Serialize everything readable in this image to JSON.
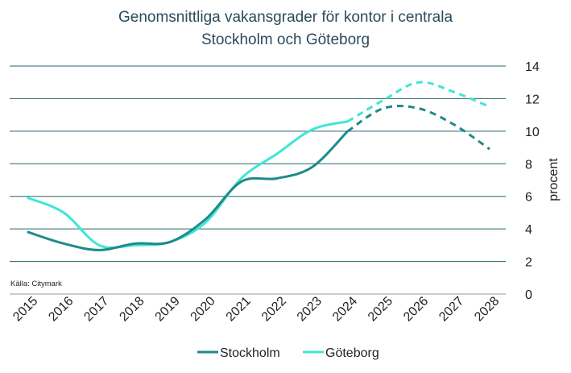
{
  "chart_data": {
    "type": "line",
    "title_lines": [
      "Genomsnittliga vakansgrader för kontor i centrala",
      "Stockholm och Göteborg"
    ],
    "x": [
      "2015",
      "2016",
      "2017",
      "2018",
      "2019",
      "2020",
      "2021",
      "2022",
      "2023",
      "2024",
      "2025",
      "2026",
      "2027",
      "2028"
    ],
    "ylabel": "procent",
    "y_ticks": [
      "0",
      "2",
      "4",
      "6",
      "8",
      "10",
      "12",
      "14"
    ],
    "ylim": [
      0,
      14
    ],
    "source": "Källa: Citymark",
    "grid": "horizontal",
    "y_axis_side": "right",
    "legend_position": "bottom",
    "forecast_from": "2024",
    "forecast_style": "dashed",
    "series": [
      {
        "name": "Stockholm",
        "color": "#1f8a8a",
        "values": [
          3.8,
          3.1,
          2.7,
          3.1,
          3.2,
          4.6,
          6.9,
          7.1,
          7.8,
          10.0,
          11.4,
          11.4,
          10.4,
          8.9
        ]
      },
      {
        "name": "Göteborg",
        "color": "#3ee6d6",
        "values": [
          5.9,
          5.0,
          3.0,
          3.0,
          3.2,
          4.4,
          7.1,
          8.6,
          10.1,
          10.6,
          11.9,
          13.0,
          12.4,
          11.5
        ]
      }
    ]
  }
}
